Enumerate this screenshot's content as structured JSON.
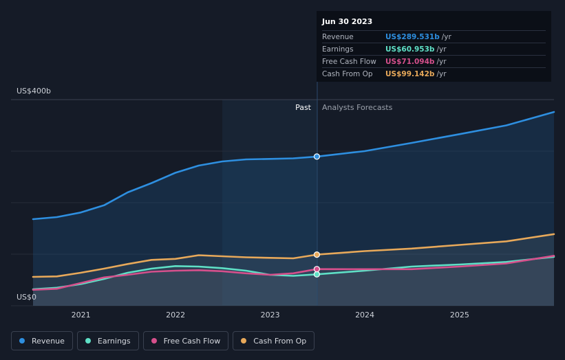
{
  "chart_data": {
    "type": "line",
    "y_top_label": "US$400b",
    "y_bottom_label": "US$0",
    "ylim": [
      0,
      400
    ],
    "x_ticks": [
      "2021",
      "2022",
      "2023",
      "2024",
      "2025"
    ],
    "past_label": "Past",
    "forecast_label": "Analysts Forecasts",
    "grid": true,
    "series": [
      {
        "name": "Revenue",
        "key": "revenue",
        "color": "#2e8fe0",
        "points": [
          [
            "2020-06-30",
            168
          ],
          [
            "2020-09-30",
            172
          ],
          [
            "2020-12-31",
            181
          ],
          [
            "2021-03-31",
            195
          ],
          [
            "2021-06-30",
            220
          ],
          [
            "2021-09-30",
            238
          ],
          [
            "2021-12-31",
            258
          ],
          [
            "2022-03-31",
            272
          ],
          [
            "2022-06-30",
            280
          ],
          [
            "2022-09-30",
            284
          ],
          [
            "2022-12-31",
            285
          ],
          [
            "2023-03-31",
            286
          ],
          [
            "2023-06-30",
            289.531
          ],
          [
            "2023-12-31",
            300
          ],
          [
            "2024-06-30",
            316
          ],
          [
            "2024-12-31",
            333
          ],
          [
            "2025-06-30",
            350
          ],
          [
            "2025-12-31",
            376
          ]
        ]
      },
      {
        "name": "Earnings",
        "key": "earnings",
        "color": "#5fe0c6",
        "points": [
          [
            "2020-06-30",
            32
          ],
          [
            "2020-09-30",
            35
          ],
          [
            "2020-12-31",
            42
          ],
          [
            "2021-03-31",
            52
          ],
          [
            "2021-06-30",
            64
          ],
          [
            "2021-09-30",
            72
          ],
          [
            "2021-12-31",
            77
          ],
          [
            "2022-03-31",
            76
          ],
          [
            "2022-06-30",
            73
          ],
          [
            "2022-09-30",
            68
          ],
          [
            "2022-12-31",
            60
          ],
          [
            "2023-03-31",
            58
          ],
          [
            "2023-06-30",
            60.953
          ],
          [
            "2023-12-31",
            68
          ],
          [
            "2024-06-30",
            76
          ],
          [
            "2024-12-31",
            80
          ],
          [
            "2025-06-30",
            85
          ],
          [
            "2025-12-31",
            95
          ]
        ]
      },
      {
        "name": "Free Cash Flow",
        "key": "fcf",
        "color": "#d6508c",
        "points": [
          [
            "2020-06-30",
            31
          ],
          [
            "2020-09-30",
            33
          ],
          [
            "2020-12-31",
            44
          ],
          [
            "2021-03-31",
            55
          ],
          [
            "2021-06-30",
            60
          ],
          [
            "2021-09-30",
            66
          ],
          [
            "2021-12-31",
            68
          ],
          [
            "2022-03-31",
            69
          ],
          [
            "2022-06-30",
            67
          ],
          [
            "2022-09-30",
            63
          ],
          [
            "2022-12-31",
            60
          ],
          [
            "2023-03-31",
            63
          ],
          [
            "2023-06-30",
            71.094
          ],
          [
            "2023-12-31",
            71
          ],
          [
            "2024-06-30",
            71
          ],
          [
            "2024-12-31",
            76
          ],
          [
            "2025-06-30",
            82
          ],
          [
            "2025-12-31",
            97
          ]
        ]
      },
      {
        "name": "Cash From Op",
        "key": "cfo",
        "color": "#e8a95a",
        "points": [
          [
            "2020-06-30",
            56
          ],
          [
            "2020-09-30",
            57
          ],
          [
            "2020-12-31",
            64
          ],
          [
            "2021-03-31",
            72
          ],
          [
            "2021-06-30",
            81
          ],
          [
            "2021-09-30",
            89
          ],
          [
            "2021-12-31",
            91
          ],
          [
            "2022-03-31",
            98
          ],
          [
            "2022-06-30",
            96
          ],
          [
            "2022-09-30",
            94
          ],
          [
            "2022-12-31",
            93
          ],
          [
            "2023-03-31",
            92
          ],
          [
            "2023-06-30",
            99.142
          ],
          [
            "2023-12-31",
            106
          ],
          [
            "2024-06-30",
            111
          ],
          [
            "2024-12-31",
            118
          ],
          [
            "2025-06-30",
            125
          ],
          [
            "2025-12-31",
            139
          ]
        ]
      }
    ]
  },
  "tooltip": {
    "date": "Jun 30 2023",
    "rows": [
      {
        "label": "Revenue",
        "value": "US$289.531b",
        "unit": "/yr",
        "color": "#2e8fe0"
      },
      {
        "label": "Earnings",
        "value": "US$60.953b",
        "unit": "/yr",
        "color": "#5fe0c6"
      },
      {
        "label": "Free Cash Flow",
        "value": "US$71.094b",
        "unit": "/yr",
        "color": "#d6508c"
      },
      {
        "label": "Cash From Op",
        "value": "US$99.142b",
        "unit": "/yr",
        "color": "#e8a95a"
      }
    ]
  },
  "legend": [
    {
      "label": "Revenue",
      "color": "#2e8fe0"
    },
    {
      "label": "Earnings",
      "color": "#5fe0c6"
    },
    {
      "label": "Free Cash Flow",
      "color": "#d6508c"
    },
    {
      "label": "Cash From Op",
      "color": "#e8a95a"
    }
  ]
}
